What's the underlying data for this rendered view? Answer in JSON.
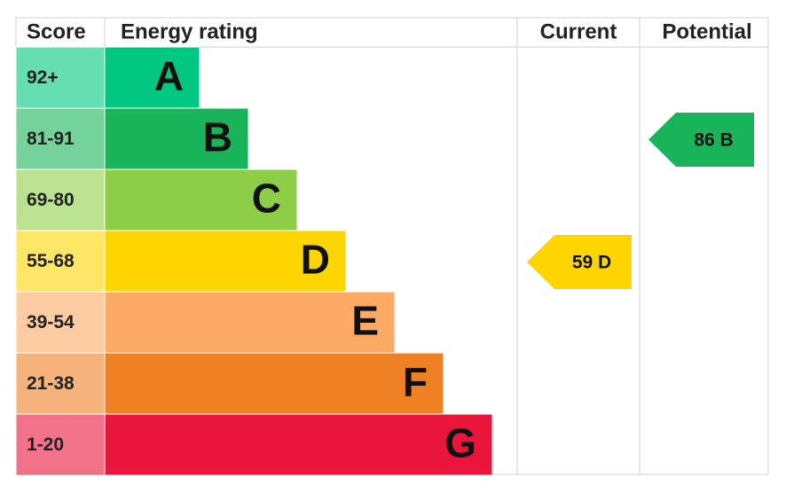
{
  "headers": {
    "score": "Score",
    "energy": "Energy rating",
    "current": "Current",
    "potential": "Potential"
  },
  "bands": [
    {
      "score": "92+",
      "rating": "A",
      "color": "#00c781"
    },
    {
      "score": "81-91",
      "rating": "B",
      "color": "#19b459"
    },
    {
      "score": "69-80",
      "rating": "C",
      "color": "#8dce46"
    },
    {
      "score": "55-68",
      "rating": "D",
      "color": "#ffd500"
    },
    {
      "score": "39-54",
      "rating": "E",
      "color": "#fcaa65"
    },
    {
      "score": "21-38",
      "rating": "F",
      "color": "#ef8023"
    },
    {
      "score": "1-20",
      "rating": "G",
      "color": "#e9153b"
    }
  ],
  "current": {
    "score": 59,
    "rating": "D"
  },
  "potential": {
    "score": 86,
    "rating": "B"
  }
}
